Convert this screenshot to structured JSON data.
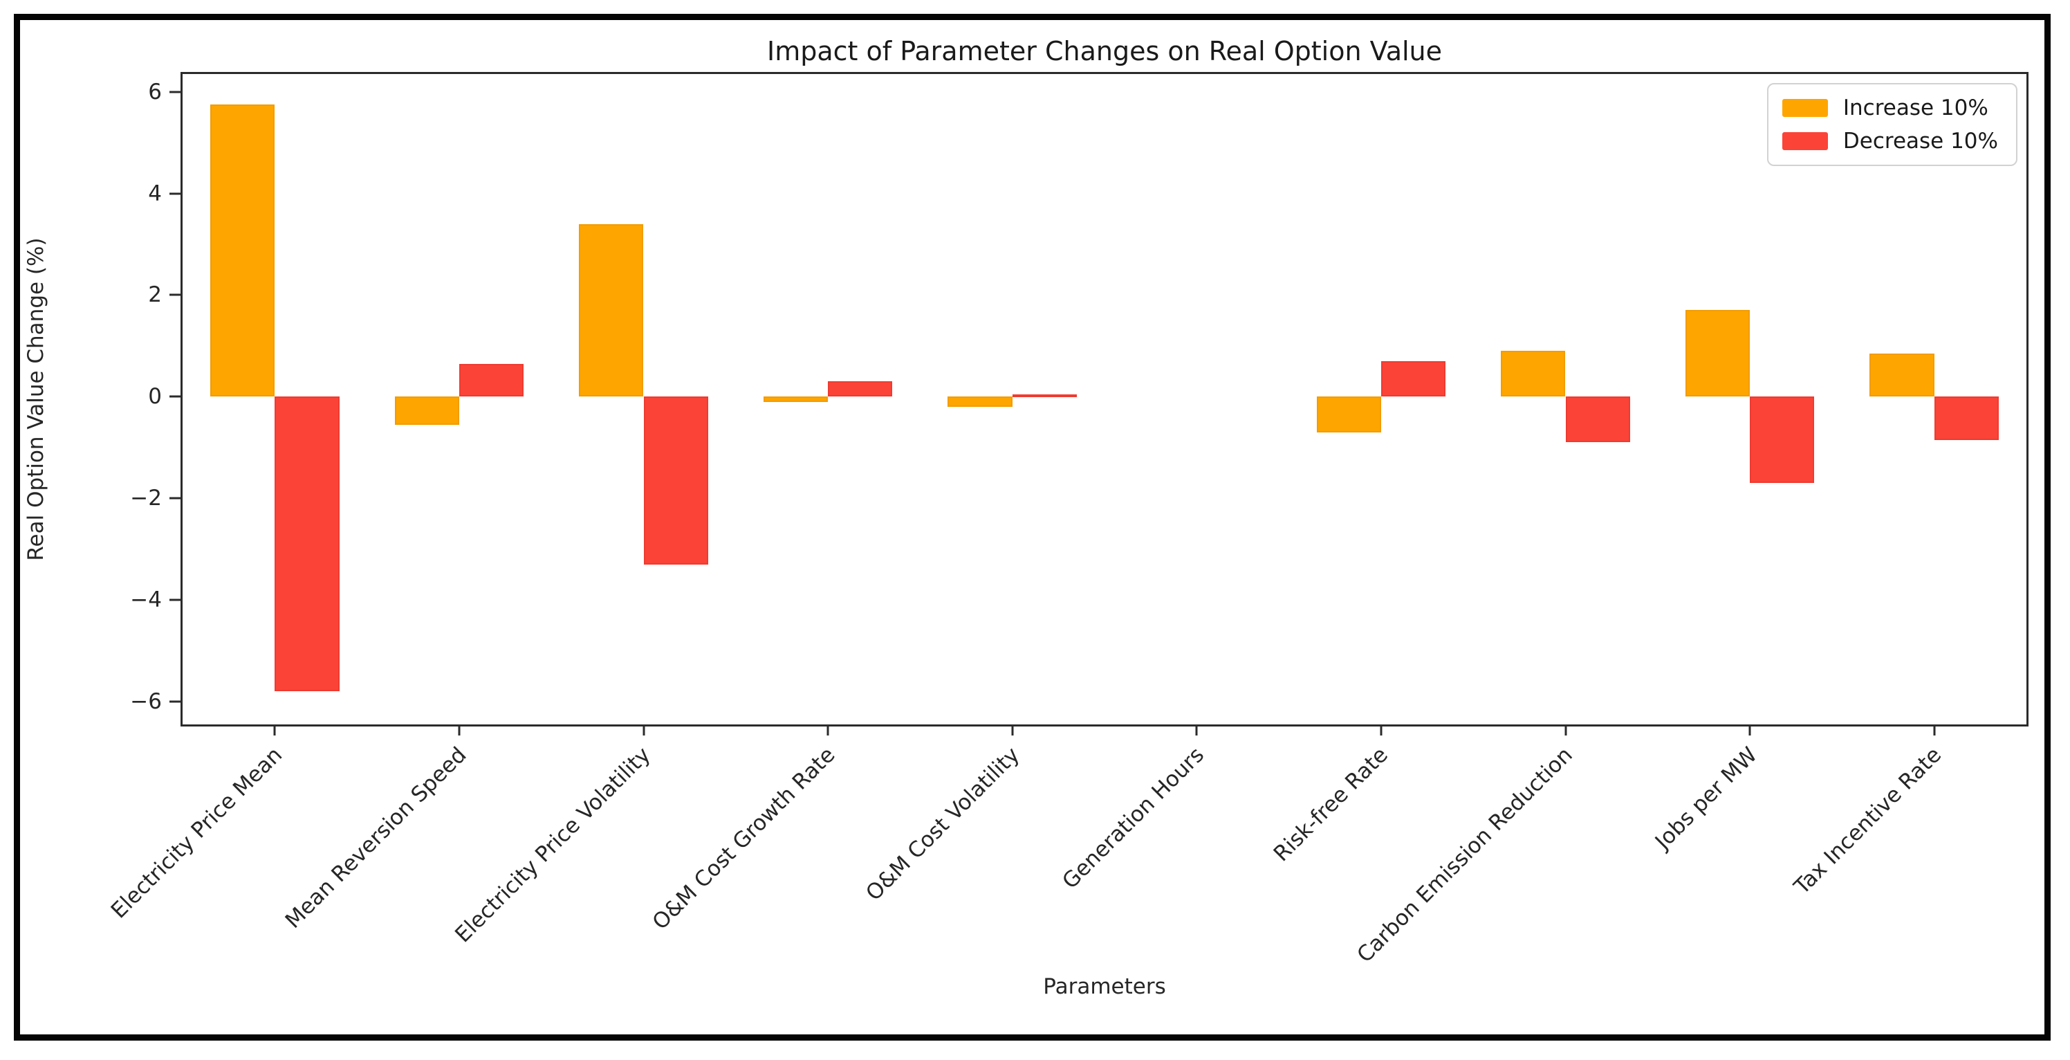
{
  "figure": {
    "title": "Impact of Parameter Changes on Real Option Value",
    "background_color": "#ffffff",
    "border_color": "#050505",
    "spine_color": "#2b2b2b"
  },
  "chart_data": {
    "type": "bar",
    "title": "Impact of Parameter Changes on Real Option Value",
    "xlabel": "Parameters",
    "ylabel": "Real Option Value Change (%)",
    "categories": [
      "Electricity Price Mean",
      "Mean Reversion Speed",
      "Electricity Price Volatility",
      "O&M Cost Growth Rate",
      "O&M Cost Volatility",
      "Generation Hours",
      "Risk-free Rate",
      "Carbon Emission Reduction",
      "Jobs per MW",
      "Tax Incentive Rate"
    ],
    "series": [
      {
        "name": "Increase 10%",
        "color": "#FFA500",
        "values": [
          5.75,
          -0.55,
          3.4,
          -0.1,
          -0.2,
          0.0,
          -0.7,
          0.9,
          1.7,
          0.85
        ]
      },
      {
        "name": "Decrease 10%",
        "color": "#FB4338",
        "values": [
          -5.8,
          0.65,
          -3.3,
          0.3,
          0.05,
          0.0,
          0.7,
          -0.9,
          -1.7,
          -0.85
        ]
      }
    ],
    "yticks": [
      6,
      4,
      2,
      0,
      -2,
      -4,
      -6
    ],
    "ylim": [
      -6.45,
      6.35
    ],
    "grid": false,
    "legend_position": "upper right",
    "bar_width_fraction": 0.35
  }
}
